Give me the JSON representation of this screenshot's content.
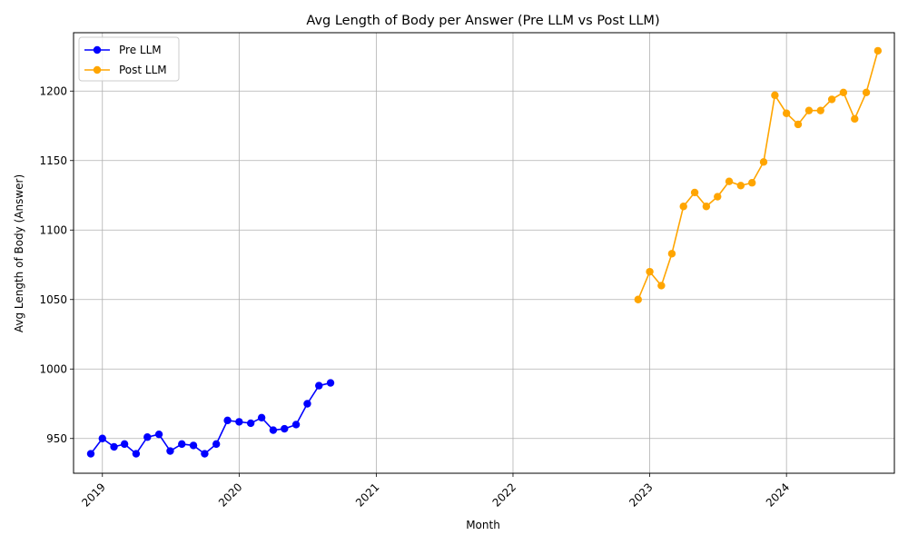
{
  "chart_data": {
    "type": "line",
    "title": "Avg Length of Body per Answer (Pre LLM vs Post LLM)",
    "xlabel": "Month",
    "ylabel": "Avg Length of Body (Answer)",
    "ylim": [
      925,
      1242
    ],
    "xlim": [
      "2018-10-16",
      "2024-10-15"
    ],
    "x_ticks": [
      "2019",
      "2020",
      "2021",
      "2022",
      "2023",
      "2024"
    ],
    "y_ticks": [
      950,
      1000,
      1050,
      1100,
      1150,
      1200
    ],
    "grid": true,
    "legend_position": "top-left",
    "series": [
      {
        "name": "Pre LLM",
        "color": "#0000ff",
        "points": [
          [
            "2018-12",
            939
          ],
          [
            "2019-01",
            950
          ],
          [
            "2019-02",
            944
          ],
          [
            "2019-03",
            946
          ],
          [
            "2019-04",
            939
          ],
          [
            "2019-05",
            951
          ],
          [
            "2019-06",
            953
          ],
          [
            "2019-07",
            941
          ],
          [
            "2019-08",
            946
          ],
          [
            "2019-09",
            945
          ],
          [
            "2019-10",
            939
          ],
          [
            "2019-11",
            946
          ],
          [
            "2019-12",
            963
          ],
          [
            "2020-01",
            962
          ],
          [
            "2020-02",
            961
          ],
          [
            "2020-03",
            965
          ],
          [
            "2020-04",
            956
          ],
          [
            "2020-05",
            957
          ],
          [
            "2020-06",
            960
          ],
          [
            "2020-07",
            975
          ],
          [
            "2020-08",
            988
          ],
          [
            "2020-09",
            990
          ]
        ]
      },
      {
        "name": "Post LLM",
        "color": "#ffa500",
        "points": [
          [
            "2022-12",
            1050
          ],
          [
            "2023-01",
            1070
          ],
          [
            "2023-02",
            1060
          ],
          [
            "2023-03",
            1083
          ],
          [
            "2023-04",
            1117
          ],
          [
            "2023-05",
            1127
          ],
          [
            "2023-06",
            1117
          ],
          [
            "2023-07",
            1124
          ],
          [
            "2023-08",
            1135
          ],
          [
            "2023-09",
            1132
          ],
          [
            "2023-10",
            1134
          ],
          [
            "2023-11",
            1149
          ],
          [
            "2023-12",
            1197
          ],
          [
            "2024-01",
            1184
          ],
          [
            "2024-02",
            1176
          ],
          [
            "2024-03",
            1186
          ],
          [
            "2024-04",
            1186
          ],
          [
            "2024-05",
            1194
          ],
          [
            "2024-06",
            1199
          ],
          [
            "2024-07",
            1180
          ],
          [
            "2024-08",
            1199
          ],
          [
            "2024-09",
            1229
          ]
        ]
      }
    ]
  }
}
